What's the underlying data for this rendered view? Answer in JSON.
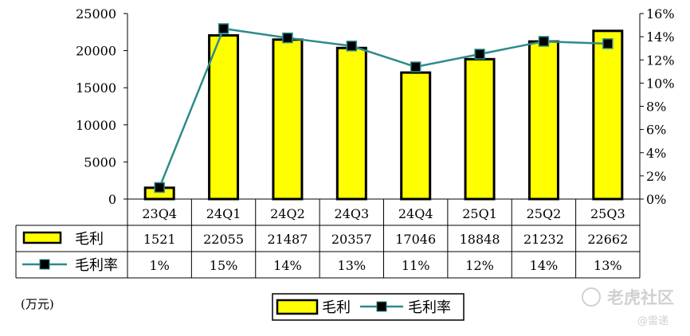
{
  "chart_data": {
    "type": "bar",
    "categories": [
      "23Q4",
      "24Q1",
      "24Q2",
      "24Q3",
      "24Q4",
      "25Q1",
      "25Q2",
      "25Q3"
    ],
    "series": [
      {
        "name": "毛利",
        "type": "bar",
        "axis": "left",
        "values": [
          1521,
          22055,
          21487,
          20357,
          17046,
          18848,
          21232,
          22662
        ],
        "labels": [
          "1521",
          "22055",
          "21487",
          "20357",
          "17046",
          "18848",
          "21232",
          "22662"
        ],
        "color": "#ffff00"
      },
      {
        "name": "毛利率",
        "type": "line",
        "axis": "right",
        "values": [
          1.0,
          14.7,
          13.9,
          13.2,
          11.4,
          12.5,
          13.6,
          13.4
        ],
        "labels": [
          "1%",
          "15%",
          "14%",
          "13%",
          "11%",
          "12%",
          "14%",
          "13%"
        ],
        "color": "#2e8b8b"
      }
    ],
    "y_left": {
      "min": 0,
      "max": 25000,
      "ticks": [
        "0",
        "5000",
        "10000",
        "15000",
        "20000",
        "25000"
      ]
    },
    "y_right": {
      "min": 0,
      "max": 16,
      "ticks": [
        "0%",
        "2%",
        "4%",
        "6%",
        "8%",
        "10%",
        "12%",
        "14%",
        "16%"
      ]
    },
    "unit_label": "(万元)",
    "grid": false,
    "legend": {
      "position": "bottom",
      "items": [
        "毛利",
        "毛利率"
      ]
    },
    "data_table": true
  },
  "watermark": {
    "main": "老虎社区",
    "sub": "@雷递"
  }
}
